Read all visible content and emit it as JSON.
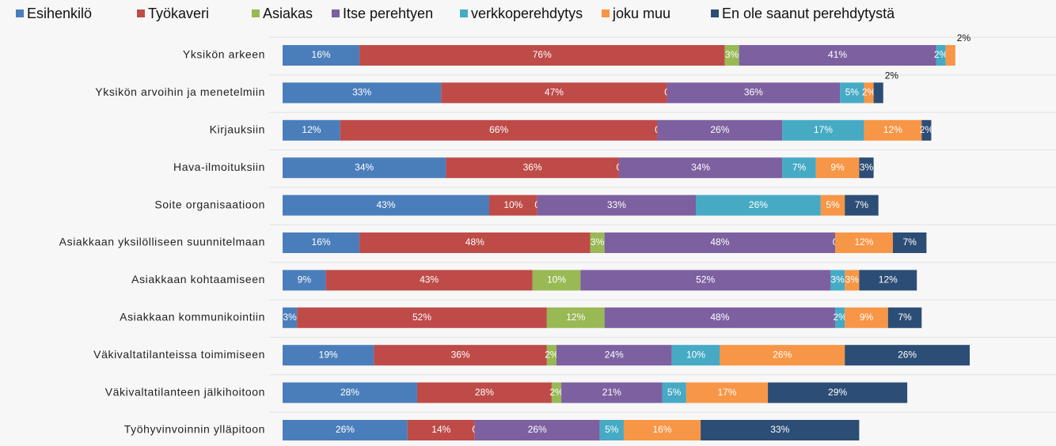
{
  "chart_data": {
    "type": "stacked-bar-horizontal",
    "categories": [
      "Yksikön arkeen",
      "Yksikön arvoihin ja menetelmiin",
      "Kirjauksiin",
      "Hava-ilmoituksiin",
      "Soite organisaatioon",
      "Asiakkaan yksilölliseen suunnitelmaan",
      "Asiakkaan kohtaamiseen",
      "Asiakkaan kommunikointiin",
      "Väkivaltatilanteissa toimimiseen",
      "Väkivaltatilanteen jälkihoitoon",
      "Työhyvinvoinnin ylläpitoon"
    ],
    "series": [
      {
        "name": "Esihenkilö",
        "color": "#4a7ebb",
        "values": [
          16,
          33,
          12,
          34,
          43,
          16,
          9,
          3,
          19,
          28,
          26
        ],
        "value_labels": [
          "16%",
          "33%",
          "12%",
          "34%",
          "43%",
          "16%",
          "9%",
          "3%",
          "19%",
          "28%",
          "26%"
        ]
      },
      {
        "name": "Työkaveri",
        "color": "#be4b48",
        "values": [
          76,
          47,
          66,
          36,
          10,
          48,
          43,
          52,
          36,
          28,
          14
        ],
        "value_labels": [
          "76%",
          "47%",
          "66%",
          "36%",
          "10%",
          "48%",
          "43%",
          "52%",
          "36%",
          "28%",
          "14%"
        ]
      },
      {
        "name": "Asiakas",
        "color": "#98b954",
        "values": [
          3,
          0,
          0,
          0,
          0,
          3,
          10,
          12,
          2,
          2,
          0
        ],
        "value_labels": [
          "3%",
          "0",
          "0",
          "0",
          "0",
          "3%",
          "10%",
          "12%",
          "2%",
          "2%",
          "0"
        ]
      },
      {
        "name": "Itse perehtyen",
        "color": "#7d60a0",
        "values": [
          41,
          36,
          26,
          34,
          33,
          48,
          52,
          48,
          24,
          21,
          26
        ],
        "value_labels": [
          "41%",
          "36%",
          "26%",
          "34%",
          "33%",
          "48%",
          "52%",
          "48%",
          "24%",
          "21%",
          "26%"
        ]
      },
      {
        "name": "verkkoperehdytys",
        "color": "#46aac5",
        "values": [
          2,
          5,
          17,
          7,
          26,
          0,
          3,
          2,
          10,
          5,
          5
        ],
        "value_labels": [
          "2%",
          "5%",
          "17%",
          "7%",
          "26%",
          "0",
          "3%",
          "2%",
          "10%",
          "5%",
          "5%"
        ]
      },
      {
        "name": "joku muu",
        "color": "#f79646",
        "values": [
          2,
          2,
          12,
          9,
          5,
          12,
          3,
          9,
          26,
          17,
          16
        ],
        "value_labels": [
          "2%",
          "2%",
          "12%",
          "9%",
          "5%",
          "12%",
          "3%",
          "9%",
          "26%",
          "17%",
          "16%"
        ]
      },
      {
        "name": "En ole saanut perehdytystä",
        "color": "#2c4d75",
        "values": [
          null,
          2,
          2,
          3,
          7,
          7,
          12,
          7,
          26,
          29,
          33
        ],
        "value_labels": [
          null,
          "2%",
          "2%",
          "3%",
          "7%",
          "7%",
          "12%",
          "7%",
          "26%",
          "29%",
          "33%"
        ]
      }
    ]
  }
}
